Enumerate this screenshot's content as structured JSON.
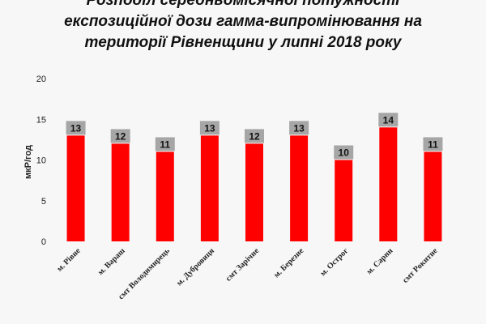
{
  "chart_data": {
    "type": "bar",
    "title_lines": [
      "Розподіл середньомісячної потужності",
      "експозиційної дози гамма-випромінювання на",
      "території Рівненщини у липні 2018 року"
    ],
    "xlabel": "",
    "ylabel": "мкР/год",
    "ylim": [
      0,
      20
    ],
    "yticks": [
      0,
      5,
      10,
      15,
      20
    ],
    "grid": false,
    "categories": [
      "м. Рівне",
      "м. Вараш",
      "смт Володимирець",
      "м. Дубровиця",
      "смт Зарічне",
      "м. Березне",
      "м. Острог",
      "м. Сарни",
      "смт Рокитне"
    ],
    "values": [
      13,
      12,
      11,
      13,
      12,
      13,
      10,
      14,
      11
    ],
    "colors": {
      "bar": "#ff0000",
      "label_box": "#a6a6a6"
    }
  }
}
